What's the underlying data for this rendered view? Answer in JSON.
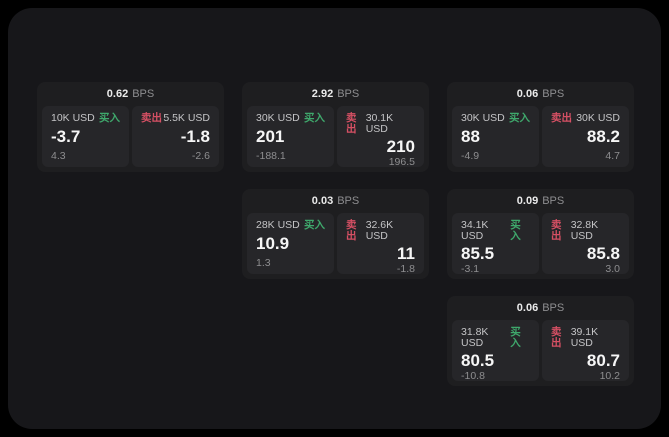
{
  "labels": {
    "bps_unit": "BPS",
    "buy": "买入",
    "sell": "卖出"
  },
  "colors": {
    "buy": "#3fa86c",
    "sell": "#d65064",
    "surface": "#17171a",
    "card": "#1e1e20",
    "panel": "#262629"
  },
  "cards": [
    {
      "row": 1,
      "col": 1,
      "bps": "0.62",
      "buy": {
        "size": "10K USD",
        "price": "-3.7",
        "sub": "4.3"
      },
      "sell": {
        "size": "5.5K USD",
        "price": "-1.8",
        "sub": "-2.6"
      }
    },
    {
      "row": 1,
      "col": 2,
      "bps": "2.92",
      "buy": {
        "size": "30K USD",
        "price": "201",
        "sub": "-188.1"
      },
      "sell": {
        "size": "30.1K USD",
        "price": "210",
        "sub": "196.5"
      }
    },
    {
      "row": 1,
      "col": 3,
      "bps": "0.06",
      "buy": {
        "size": "30K USD",
        "price": "88",
        "sub": "-4.9"
      },
      "sell": {
        "size": "30K USD",
        "price": "88.2",
        "sub": "4.7"
      }
    },
    {
      "row": 2,
      "col": 2,
      "bps": "0.03",
      "buy": {
        "size": "28K USD",
        "price": "10.9",
        "sub": "1.3"
      },
      "sell": {
        "size": "32.6K USD",
        "price": "11",
        "sub": "-1.8"
      }
    },
    {
      "row": 2,
      "col": 3,
      "bps": "0.09",
      "buy": {
        "size": "34.1K USD",
        "price": "85.5",
        "sub": "-3.1"
      },
      "sell": {
        "size": "32.8K USD",
        "price": "85.8",
        "sub": "3.0"
      }
    },
    {
      "row": 3,
      "col": 3,
      "bps": "0.06",
      "buy": {
        "size": "31.8K USD",
        "price": "80.5",
        "sub": "-10.8"
      },
      "sell": {
        "size": "39.1K USD",
        "price": "80.7",
        "sub": "10.2"
      }
    }
  ]
}
